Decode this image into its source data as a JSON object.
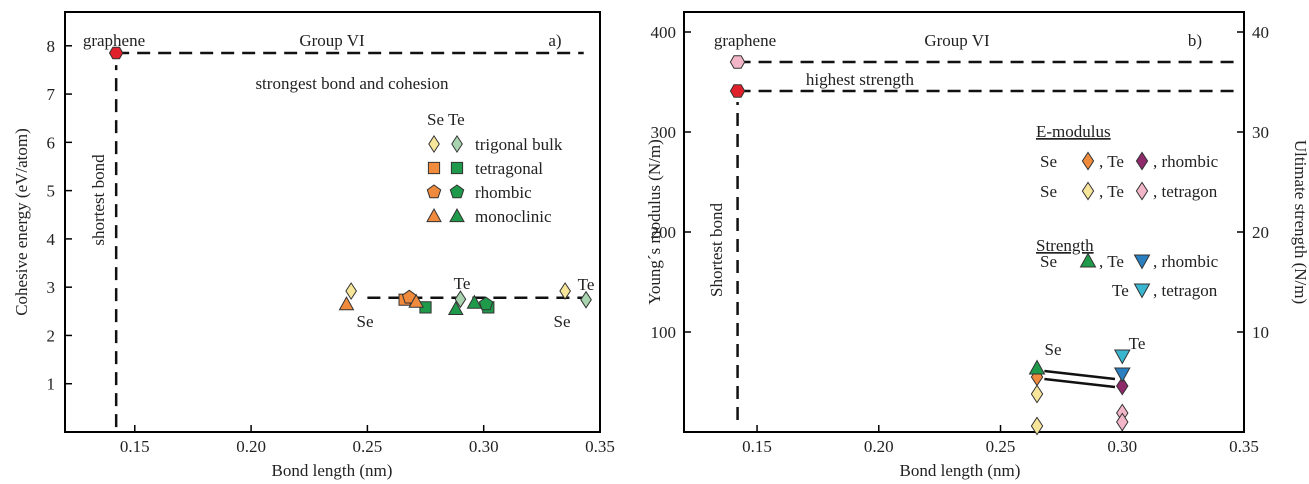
{
  "chart_data": [
    {
      "type": "scatter",
      "panel_label": "a)",
      "group_label": "Group VI",
      "xlabel": "Bond length (nm)",
      "ylabel": "Cohesive energy (eV/atom)",
      "xlim": [
        0.12,
        0.35
      ],
      "ylim": [
        0,
        8.7
      ],
      "xticks": [
        "0.15",
        "0.20",
        "0.25",
        "0.30",
        "0.35"
      ],
      "xtick_values": [
        0.15,
        0.2,
        0.25,
        0.3,
        0.35
      ],
      "yticks": [
        "1",
        "2",
        "3",
        "4",
        "5",
        "6",
        "7",
        "8"
      ],
      "ytick_values": [
        1,
        2,
        3,
        4,
        5,
        6,
        7,
        8
      ],
      "legend": {
        "header": "Se Te",
        "placement": "upper-right",
        "entries": [
          {
            "label": "trigonal bulk",
            "shape": "diamond",
            "colors": [
              "#f7e59a",
              "#a8d5b0"
            ]
          },
          {
            "label": "tetragonal",
            "shape": "square",
            "colors": [
              "#f08a3c",
              "#1e9a4a"
            ]
          },
          {
            "label": "rhombic",
            "shape": "pentagon",
            "colors": [
              "#f08a3c",
              "#1e9a4a"
            ]
          },
          {
            "label": "monoclinic",
            "shape": "triangle",
            "colors": [
              "#f08a3c",
              "#1e9a4a"
            ]
          }
        ]
      },
      "annotations": {
        "graphene": "graphene",
        "strongest": "strongest bond and cohesion",
        "shortest": "shortest bond",
        "se1": "Se",
        "te1": "Te",
        "se2": "Se",
        "te2": "Te"
      },
      "series": [
        {
          "name": "graphene",
          "shape": "hexagon",
          "color": "#e0202a",
          "points": [
            [
              0.142,
              7.85
            ]
          ]
        },
        {
          "name": "Se trigonal bulk",
          "shape": "diamond",
          "color": "#f7e59a",
          "points": [
            [
              0.243,
              2.92
            ],
            [
              0.335,
              2.92
            ]
          ]
        },
        {
          "name": "Te trigonal bulk",
          "shape": "diamond",
          "color": "#a8d5b0",
          "points": [
            [
              0.29,
              2.75
            ],
            [
              0.344,
              2.74
            ]
          ]
        },
        {
          "name": "Se tetragonal",
          "shape": "square",
          "color": "#f08a3c",
          "points": [
            [
              0.266,
              2.74
            ]
          ]
        },
        {
          "name": "Te tetragonal",
          "shape": "square",
          "color": "#1e9a4a",
          "points": [
            [
              0.275,
              2.58
            ],
            [
              0.302,
              2.58
            ]
          ]
        },
        {
          "name": "Se rhombic",
          "shape": "pentagon",
          "color": "#f08a3c",
          "points": [
            [
              0.268,
              2.79
            ]
          ]
        },
        {
          "name": "Te rhombic",
          "shape": "pentagon",
          "color": "#1e9a4a",
          "points": [
            [
              0.301,
              2.65
            ]
          ]
        },
        {
          "name": "Se monoclinic",
          "shape": "triangle",
          "color": "#f08a3c",
          "points": [
            [
              0.241,
              2.65
            ],
            [
              0.271,
              2.7
            ]
          ]
        },
        {
          "name": "Te monoclinic",
          "shape": "triangle",
          "color": "#1e9a4a",
          "points": [
            [
              0.288,
              2.55
            ],
            [
              0.296,
              2.68
            ]
          ]
        }
      ],
      "lines": {
        "horizontal_dashed": [
          {
            "x": [
              0.142,
              0.343
            ],
            "y": 7.85
          },
          {
            "x": [
              0.25,
              0.343
            ],
            "y": 2.78
          }
        ],
        "vertical_dashed": [
          {
            "x": 0.142,
            "y": [
              0.1,
              7.6
            ]
          }
        ]
      },
      "grid": false
    },
    {
      "type": "scatter",
      "panel_label": "b)",
      "group_label": "Group VI",
      "xlabel": "Bond length (nm)",
      "ylabel": "Young´s modulus (N/m)",
      "ylabel_right": "Ultimate strength (N/m)",
      "xlim": [
        0.12,
        0.35
      ],
      "ylim": [
        0,
        420
      ],
      "ylim_right": [
        0,
        42
      ],
      "xticks": [
        "0.15",
        "0.20",
        "0.25",
        "0.30",
        "0.35"
      ],
      "xtick_values": [
        0.15,
        0.2,
        0.25,
        0.3,
        0.35
      ],
      "yticks": [
        "100",
        "200",
        "300",
        "400"
      ],
      "ytick_values": [
        100,
        200,
        300,
        400
      ],
      "yticks_right": [
        "10",
        "20",
        "30",
        "40"
      ],
      "ytick_values_right": [
        10,
        20,
        30,
        40
      ],
      "legend": {
        "placement": "right",
        "emodulus_title": "E-modulus",
        "strength_title": "Strength",
        "rows": [
          {
            "prefix": "Se",
            "mid": ", Te",
            "suffix": ", rhombic",
            "shape": "diamond",
            "colors": [
              "#f08a3c",
              "#8e2a6a"
            ]
          },
          {
            "prefix": "Se",
            "mid": ", Te",
            "suffix": ", tetragon",
            "shape": "diamond",
            "colors": [
              "#f7e59a",
              "#f3b6c8"
            ]
          },
          {
            "prefix": "Se",
            "mid": ", Te",
            "suffix": ", rhombic",
            "shape": "triangle-up-down",
            "colors": [
              "#1e9a4a",
              "#2a7fc0"
            ]
          },
          {
            "prefix": "",
            "mid": "Te",
            "suffix": ", tetragon",
            "shape": "triangle-down",
            "colors": [
              "#38b6d0"
            ]
          }
        ]
      },
      "annotations": {
        "graphene": "graphene",
        "highest": "highest strength",
        "shortest": "Shortest bond",
        "se": "Se",
        "te": "Te"
      },
      "series": [
        {
          "name": "graphene E-modulus",
          "shape": "hexagon",
          "color": "#f3b6c8",
          "points": [
            [
              0.142,
              370
            ]
          ]
        },
        {
          "name": "graphene strength",
          "shape": "hexagon",
          "color": "#e0202a",
          "points": [
            [
              0.142,
              341
            ]
          ]
        },
        {
          "name": "Se rhombic E-modulus",
          "shape": "diamond",
          "color": "#f08a3c",
          "points": [
            [
              0.265,
              55
            ]
          ]
        },
        {
          "name": "Se tetragon E-modulus",
          "shape": "diamond",
          "color": "#f7e59a",
          "points": [
            [
              0.265,
              38
            ],
            [
              0.265,
              6
            ]
          ]
        },
        {
          "name": "Se rhombic strength",
          "shape": "triangle",
          "color": "#1e9a4a",
          "points": [
            [
              0.265,
              64
            ]
          ]
        },
        {
          "name": "Te rhombic E-modulus",
          "shape": "diamond",
          "color": "#8e2a6a",
          "points": [
            [
              0.3,
              46
            ]
          ]
        },
        {
          "name": "Te tetragon E-modulus",
          "shape": "diamond",
          "color": "#f3b6c8",
          "points": [
            [
              0.3,
              19
            ],
            [
              0.3,
              10
            ]
          ]
        },
        {
          "name": "Te rhombic strength",
          "shape": "triangle-down",
          "color": "#2a7fc0",
          "points": [
            [
              0.3,
              58
            ]
          ]
        },
        {
          "name": "Te tetragon strength",
          "shape": "triangle-down",
          "color": "#38b6d0",
          "points": [
            [
              0.3,
              76
            ]
          ]
        }
      ],
      "lines": {
        "horizontal_dashed": [
          {
            "x": [
              0.142,
              0.35
            ],
            "y": 370
          },
          {
            "x": [
              0.142,
              0.35
            ],
            "y": 341
          }
        ],
        "vertical_dashed": [
          {
            "x": 0.142,
            "y": [
              12,
              330
            ]
          }
        ],
        "solid": [
          {
            "x": [
              0.268,
              0.297
            ],
            "y": [
              61,
              53
            ]
          },
          {
            "x": [
              0.268,
              0.297
            ],
            "y": [
              53,
              45
            ]
          }
        ]
      },
      "grid": false
    }
  ]
}
